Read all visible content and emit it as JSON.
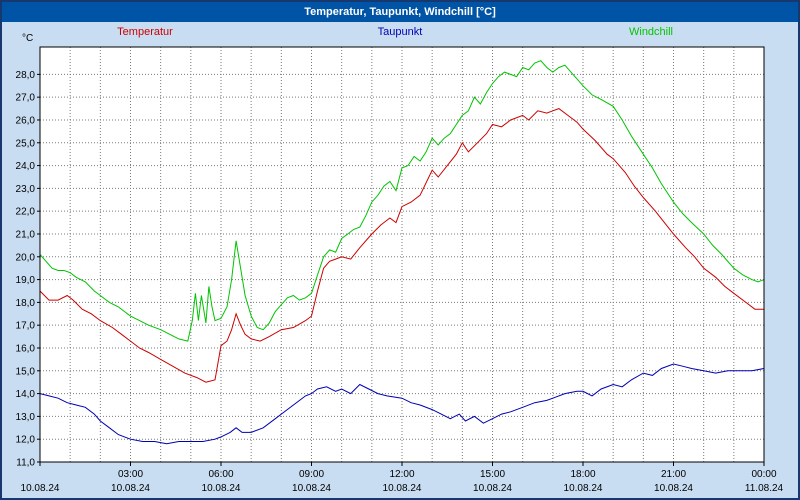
{
  "title": "Temperatur, Taupunkt, Windchill [°C]",
  "unit_label": "°C",
  "legend": [
    {
      "label": "Temperatur",
      "color": "#cc0000"
    },
    {
      "label": "Taupunkt",
      "color": "#0000b4"
    },
    {
      "label": "Windchill",
      "color": "#00c400"
    }
  ],
  "colors": {
    "titlebar": "#0054a6",
    "background": "#c9ddf2",
    "frame_border": "#16386e",
    "plot_background": "#ffffff",
    "grid": "#7a7a7a"
  },
  "chart_data": {
    "type": "line",
    "title": "Temperatur, Taupunkt, Windchill [°C]",
    "xlabel": "",
    "ylabel": "°C",
    "ylim": [
      11,
      29.2
    ],
    "xlim_hours": [
      0,
      24
    ],
    "grid": "dotted; vertical line every hour, horizontal line every 1 °C",
    "grid_color": "#7a7a7a",
    "legend_position": "top",
    "y_ticks": [
      {
        "v": 11,
        "label": "11,0"
      },
      {
        "v": 12,
        "label": "12,0"
      },
      {
        "v": 13,
        "label": "13,0"
      },
      {
        "v": 14,
        "label": "14,0"
      },
      {
        "v": 15,
        "label": "15,0"
      },
      {
        "v": 16,
        "label": "16,0"
      },
      {
        "v": 17,
        "label": "17,0"
      },
      {
        "v": 18,
        "label": "18,0"
      },
      {
        "v": 19,
        "label": "19,0"
      },
      {
        "v": 20,
        "label": "20,0"
      },
      {
        "v": 21,
        "label": "21,0"
      },
      {
        "v": 22,
        "label": "22,0"
      },
      {
        "v": 23,
        "label": "23,0"
      },
      {
        "v": 24,
        "label": "24,0"
      },
      {
        "v": 25,
        "label": "25,0"
      },
      {
        "v": 26,
        "label": "26,0"
      },
      {
        "v": 27,
        "label": "27,0"
      },
      {
        "v": 28,
        "label": "28,0"
      }
    ],
    "x_ticks": [
      {
        "h": 0,
        "time": "",
        "date": "10.08.24"
      },
      {
        "h": 3,
        "time": "03:00",
        "date": "10.08.24"
      },
      {
        "h": 6,
        "time": "06:00",
        "date": "10.08.24"
      },
      {
        "h": 9,
        "time": "09:00",
        "date": "10.08.24"
      },
      {
        "h": 12,
        "time": "12:00",
        "date": "10.08.24"
      },
      {
        "h": 15,
        "time": "15:00",
        "date": "10.08.24"
      },
      {
        "h": 18,
        "time": "18:00",
        "date": "10.08.24"
      },
      {
        "h": 21,
        "time": "21:00",
        "date": "10.08.24"
      },
      {
        "h": 24,
        "time": "00:00",
        "date": "11.08.24"
      }
    ],
    "series": [
      {
        "name": "Windchill",
        "color": "#00c400",
        "points": [
          [
            0,
            20.1
          ],
          [
            0.2,
            19.8
          ],
          [
            0.4,
            19.5
          ],
          [
            0.6,
            19.4
          ],
          [
            0.8,
            19.4
          ],
          [
            1,
            19.3
          ],
          [
            1.2,
            19.1
          ],
          [
            1.5,
            18.9
          ],
          [
            1.8,
            18.5
          ],
          [
            2,
            18.3
          ],
          [
            2.3,
            18.0
          ],
          [
            2.6,
            17.8
          ],
          [
            3,
            17.4
          ],
          [
            3.3,
            17.2
          ],
          [
            3.6,
            17.0
          ],
          [
            4,
            16.8
          ],
          [
            4.3,
            16.6
          ],
          [
            4.6,
            16.4
          ],
          [
            4.9,
            16.3
          ],
          [
            5.05,
            17.2
          ],
          [
            5.15,
            18.4
          ],
          [
            5.25,
            17.2
          ],
          [
            5.35,
            18.3
          ],
          [
            5.5,
            17.1
          ],
          [
            5.6,
            18.7
          ],
          [
            5.7,
            17.8
          ],
          [
            5.8,
            17.2
          ],
          [
            6,
            17.3
          ],
          [
            6.2,
            17.8
          ],
          [
            6.35,
            19.0
          ],
          [
            6.5,
            20.7
          ],
          [
            6.65,
            19.5
          ],
          [
            6.8,
            18.3
          ],
          [
            7,
            17.4
          ],
          [
            7.2,
            16.9
          ],
          [
            7.4,
            16.8
          ],
          [
            7.6,
            17.1
          ],
          [
            7.8,
            17.6
          ],
          [
            8,
            17.9
          ],
          [
            8.2,
            18.2
          ],
          [
            8.4,
            18.3
          ],
          [
            8.6,
            18.1
          ],
          [
            8.8,
            18.2
          ],
          [
            9,
            18.4
          ],
          [
            9.2,
            19.2
          ],
          [
            9.4,
            20.0
          ],
          [
            9.6,
            20.3
          ],
          [
            9.8,
            20.2
          ],
          [
            10,
            20.8
          ],
          [
            10.2,
            21.0
          ],
          [
            10.4,
            21.2
          ],
          [
            10.6,
            21.3
          ],
          [
            10.8,
            21.8
          ],
          [
            11,
            22.4
          ],
          [
            11.2,
            22.7
          ],
          [
            11.4,
            23.1
          ],
          [
            11.6,
            23.3
          ],
          [
            11.8,
            22.9
          ],
          [
            12,
            23.9
          ],
          [
            12.2,
            24.0
          ],
          [
            12.4,
            24.4
          ],
          [
            12.6,
            24.2
          ],
          [
            12.8,
            24.6
          ],
          [
            13,
            25.2
          ],
          [
            13.2,
            24.9
          ],
          [
            13.4,
            25.2
          ],
          [
            13.6,
            25.4
          ],
          [
            13.8,
            25.8
          ],
          [
            14,
            26.2
          ],
          [
            14.2,
            26.4
          ],
          [
            14.4,
            27.0
          ],
          [
            14.6,
            26.7
          ],
          [
            14.8,
            27.2
          ],
          [
            15,
            27.6
          ],
          [
            15.2,
            27.9
          ],
          [
            15.4,
            28.1
          ],
          [
            15.6,
            28.0
          ],
          [
            15.8,
            27.9
          ],
          [
            16,
            28.3
          ],
          [
            16.2,
            28.2
          ],
          [
            16.4,
            28.5
          ],
          [
            16.6,
            28.6
          ],
          [
            16.8,
            28.3
          ],
          [
            17,
            28.1
          ],
          [
            17.2,
            28.3
          ],
          [
            17.4,
            28.4
          ],
          [
            17.6,
            28.1
          ],
          [
            17.8,
            27.8
          ],
          [
            18,
            27.5
          ],
          [
            18.3,
            27.1
          ],
          [
            18.6,
            26.9
          ],
          [
            19,
            26.6
          ],
          [
            19.3,
            26.0
          ],
          [
            19.6,
            25.3
          ],
          [
            20,
            24.5
          ],
          [
            20.3,
            23.9
          ],
          [
            20.6,
            23.2
          ],
          [
            21,
            22.4
          ],
          [
            21.3,
            21.9
          ],
          [
            21.6,
            21.5
          ],
          [
            22,
            21.0
          ],
          [
            22.3,
            20.5
          ],
          [
            22.6,
            20.1
          ],
          [
            23,
            19.5
          ],
          [
            23.3,
            19.2
          ],
          [
            23.6,
            19.0
          ],
          [
            23.8,
            18.9
          ],
          [
            24,
            19.0
          ]
        ]
      },
      {
        "name": "Temperatur",
        "color": "#cc0000",
        "points": [
          [
            0,
            18.5
          ],
          [
            0.3,
            18.1
          ],
          [
            0.6,
            18.1
          ],
          [
            0.9,
            18.3
          ],
          [
            1.1,
            18.1
          ],
          [
            1.4,
            17.7
          ],
          [
            1.7,
            17.5
          ],
          [
            2,
            17.2
          ],
          [
            2.4,
            16.9
          ],
          [
            2.7,
            16.6
          ],
          [
            3,
            16.3
          ],
          [
            3.3,
            16.0
          ],
          [
            3.6,
            15.8
          ],
          [
            4,
            15.5
          ],
          [
            4.4,
            15.2
          ],
          [
            4.8,
            14.9
          ],
          [
            5.2,
            14.7
          ],
          [
            5.5,
            14.5
          ],
          [
            5.8,
            14.6
          ],
          [
            6,
            16.1
          ],
          [
            6.2,
            16.3
          ],
          [
            6.35,
            16.8
          ],
          [
            6.5,
            17.5
          ],
          [
            6.65,
            17.0
          ],
          [
            6.8,
            16.6
          ],
          [
            7,
            16.4
          ],
          [
            7.3,
            16.3
          ],
          [
            7.6,
            16.5
          ],
          [
            8,
            16.8
          ],
          [
            8.4,
            16.9
          ],
          [
            8.8,
            17.2
          ],
          [
            9,
            17.4
          ],
          [
            9.2,
            18.5
          ],
          [
            9.4,
            19.5
          ],
          [
            9.6,
            19.8
          ],
          [
            9.8,
            19.9
          ],
          [
            10,
            20.0
          ],
          [
            10.3,
            19.9
          ],
          [
            10.6,
            20.4
          ],
          [
            11,
            21.0
          ],
          [
            11.3,
            21.4
          ],
          [
            11.6,
            21.7
          ],
          [
            11.8,
            21.5
          ],
          [
            12,
            22.2
          ],
          [
            12.3,
            22.4
          ],
          [
            12.6,
            22.7
          ],
          [
            13,
            23.8
          ],
          [
            13.2,
            23.5
          ],
          [
            13.5,
            24.0
          ],
          [
            13.8,
            24.5
          ],
          [
            14,
            25.0
          ],
          [
            14.2,
            24.6
          ],
          [
            14.5,
            25.0
          ],
          [
            14.8,
            25.4
          ],
          [
            15,
            25.8
          ],
          [
            15.3,
            25.7
          ],
          [
            15.6,
            26.0
          ],
          [
            16,
            26.2
          ],
          [
            16.2,
            26.0
          ],
          [
            16.5,
            26.4
          ],
          [
            16.8,
            26.3
          ],
          [
            17,
            26.4
          ],
          [
            17.2,
            26.5
          ],
          [
            17.5,
            26.2
          ],
          [
            17.8,
            25.9
          ],
          [
            18,
            25.6
          ],
          [
            18.4,
            25.1
          ],
          [
            18.8,
            24.5
          ],
          [
            19,
            24.3
          ],
          [
            19.4,
            23.7
          ],
          [
            19.7,
            23.1
          ],
          [
            20,
            22.6
          ],
          [
            20.4,
            22.0
          ],
          [
            20.7,
            21.5
          ],
          [
            21,
            21.0
          ],
          [
            21.4,
            20.4
          ],
          [
            21.7,
            20.0
          ],
          [
            22,
            19.5
          ],
          [
            22.4,
            19.1
          ],
          [
            22.7,
            18.7
          ],
          [
            23,
            18.4
          ],
          [
            23.4,
            18.0
          ],
          [
            23.7,
            17.7
          ],
          [
            24,
            17.7
          ]
        ]
      },
      {
        "name": "Taupunkt",
        "color": "#0000b4",
        "points": [
          [
            0,
            14.0
          ],
          [
            0.3,
            13.9
          ],
          [
            0.6,
            13.8
          ],
          [
            0.9,
            13.6
          ],
          [
            1.2,
            13.5
          ],
          [
            1.5,
            13.4
          ],
          [
            1.8,
            13.1
          ],
          [
            2,
            12.8
          ],
          [
            2.3,
            12.5
          ],
          [
            2.6,
            12.2
          ],
          [
            3,
            12.0
          ],
          [
            3.4,
            11.9
          ],
          [
            3.8,
            11.9
          ],
          [
            4.2,
            11.8
          ],
          [
            4.6,
            11.9
          ],
          [
            5,
            11.9
          ],
          [
            5.4,
            11.9
          ],
          [
            5.8,
            12.0
          ],
          [
            6,
            12.1
          ],
          [
            6.3,
            12.3
          ],
          [
            6.5,
            12.5
          ],
          [
            6.7,
            12.3
          ],
          [
            7,
            12.3
          ],
          [
            7.4,
            12.5
          ],
          [
            7.8,
            12.9
          ],
          [
            8,
            13.1
          ],
          [
            8.4,
            13.5
          ],
          [
            8.8,
            13.9
          ],
          [
            9,
            14.0
          ],
          [
            9.2,
            14.2
          ],
          [
            9.5,
            14.3
          ],
          [
            9.8,
            14.1
          ],
          [
            10,
            14.2
          ],
          [
            10.3,
            14.0
          ],
          [
            10.6,
            14.4
          ],
          [
            10.9,
            14.2
          ],
          [
            11.2,
            14.0
          ],
          [
            11.5,
            13.9
          ],
          [
            12,
            13.8
          ],
          [
            12.3,
            13.6
          ],
          [
            12.6,
            13.5
          ],
          [
            13,
            13.3
          ],
          [
            13.3,
            13.1
          ],
          [
            13.6,
            12.9
          ],
          [
            13.9,
            13.1
          ],
          [
            14.1,
            12.8
          ],
          [
            14.4,
            13.0
          ],
          [
            14.7,
            12.7
          ],
          [
            15,
            12.9
          ],
          [
            15.3,
            13.1
          ],
          [
            15.6,
            13.2
          ],
          [
            16,
            13.4
          ],
          [
            16.4,
            13.6
          ],
          [
            16.8,
            13.7
          ],
          [
            17,
            13.8
          ],
          [
            17.4,
            14.0
          ],
          [
            17.8,
            14.1
          ],
          [
            18,
            14.1
          ],
          [
            18.3,
            13.9
          ],
          [
            18.6,
            14.2
          ],
          [
            19,
            14.4
          ],
          [
            19.3,
            14.3
          ],
          [
            19.6,
            14.6
          ],
          [
            20,
            14.9
          ],
          [
            20.3,
            14.8
          ],
          [
            20.6,
            15.1
          ],
          [
            21,
            15.3
          ],
          [
            21.3,
            15.2
          ],
          [
            21.6,
            15.1
          ],
          [
            22,
            15.0
          ],
          [
            22.4,
            14.9
          ],
          [
            22.8,
            15.0
          ],
          [
            23.2,
            15.0
          ],
          [
            23.6,
            15.0
          ],
          [
            24,
            15.1
          ]
        ]
      }
    ]
  }
}
